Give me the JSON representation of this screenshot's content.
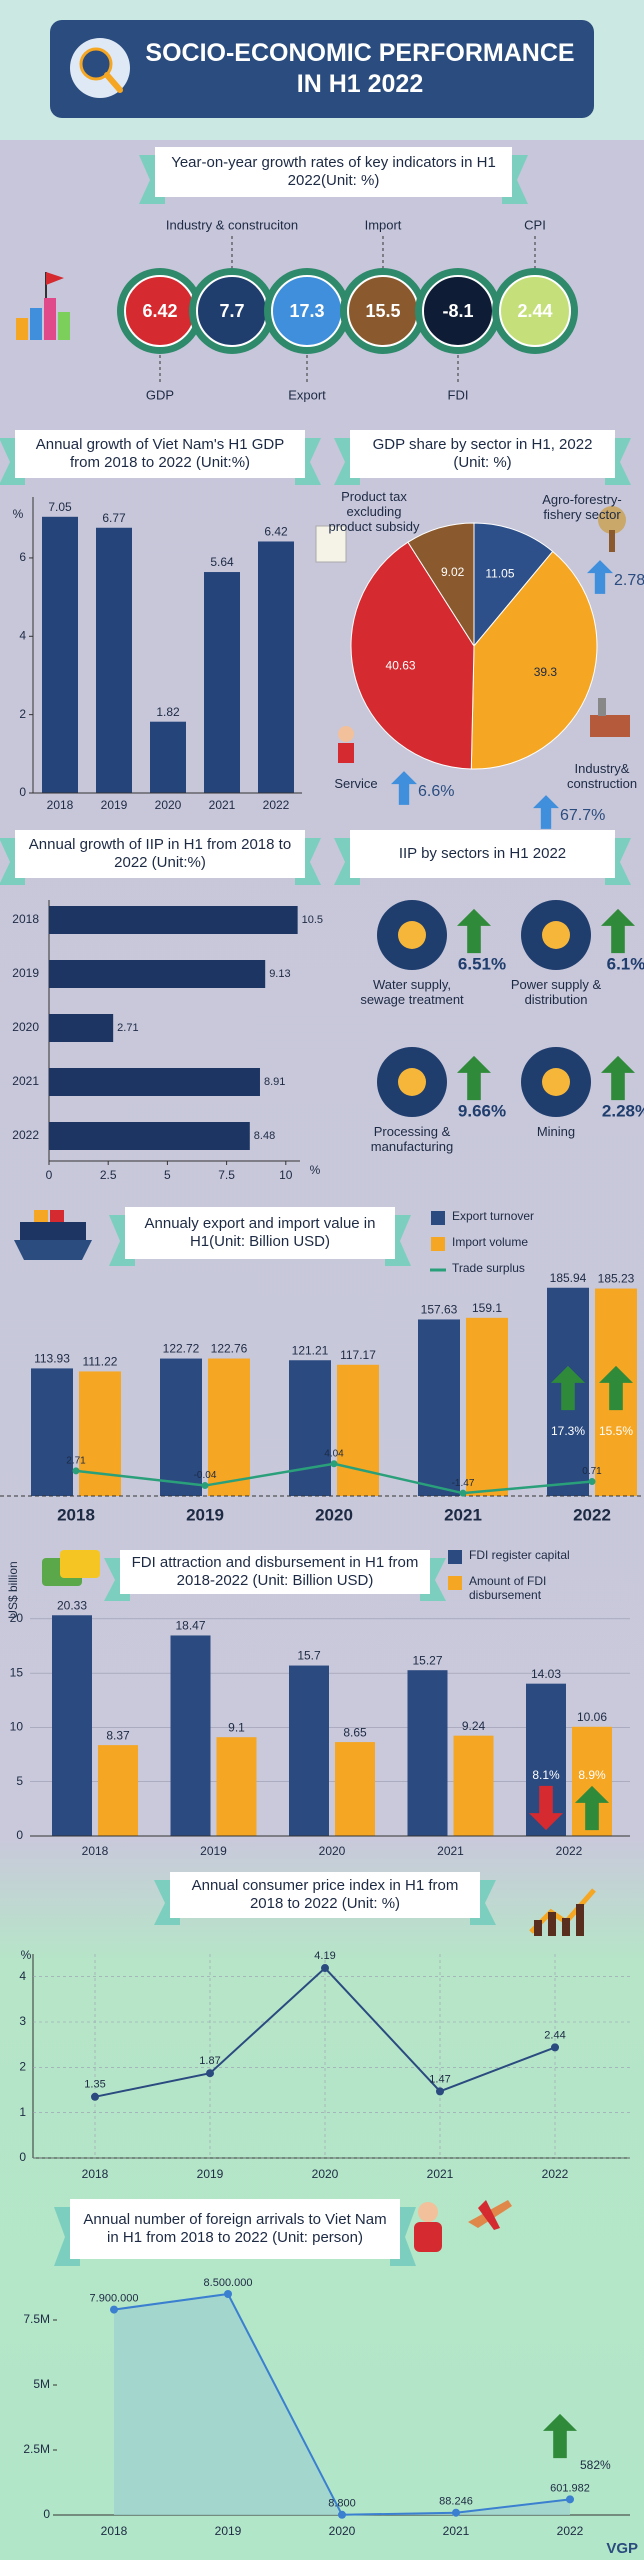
{
  "title": "SOCIO-ECONOMIC PERFORMANCE IN H1 2022",
  "indicators": {
    "title": "Year-on-year growth rates of key indicators in H1 2022(Unit: %)",
    "items": [
      {
        "label": "GDP",
        "value": 6.42,
        "color": "#d42a30"
      },
      {
        "label": "Industry & construciton",
        "value": 7.7,
        "color": "#1f3d6d"
      },
      {
        "label": "Export",
        "value": 17.3,
        "color": "#3f8fdc"
      },
      {
        "label": "Import",
        "value": 15.5,
        "color": "#8a5a2e"
      },
      {
        "label": "FDI",
        "value": -8.1,
        "color": "#0e1c35"
      },
      {
        "label": "CPI",
        "value": 2.44,
        "color": "#c5e07a"
      }
    ]
  },
  "chart_data": [
    {
      "type": "bar",
      "title": "Annual growth of Viet Nam's H1 GDP from 2018 to 2022 (Unit:%)",
      "y_label": "%",
      "categories": [
        "2018",
        "2019",
        "2020",
        "2021",
        "2022"
      ],
      "values": [
        7.05,
        6.77,
        1.82,
        5.64,
        6.42
      ],
      "color": "#25457a",
      "ylim": [
        0,
        7.3
      ],
      "yticks": [
        0,
        2,
        4,
        6
      ]
    },
    {
      "type": "pie",
      "title": "GDP share by sector in H1, 2022 (Unit: %)",
      "categories": [
        "Agro-forestry-fishery sector",
        "Industry& construction",
        "Service",
        "Product tax excluding product subsidy"
      ],
      "values": [
        11.05,
        39.3,
        40.63,
        9.02
      ],
      "colors": [
        "#2d4f8a",
        "#f5a623",
        "#d42a30",
        "#8a5a2e"
      ],
      "annotations": [
        "2.78%",
        "67.7%",
        "6.6%"
      ]
    },
    {
      "type": "bar",
      "orientation": "horizontal",
      "title": "Annual growth of IIP in H1 from 2018 to 2022 (Unit:%)",
      "x_label": "%",
      "categories": [
        "2018",
        "2019",
        "2020",
        "2021",
        "2022"
      ],
      "values": [
        10.5,
        9.13,
        2.71,
        8.91,
        8.48
      ],
      "color": "#1c3563",
      "xlim": [
        0,
        10.6
      ],
      "xticks": [
        0,
        2.5,
        5,
        7.5,
        10
      ]
    },
    {
      "type": "bar",
      "title": "Annualy export and import value in H1(Unit: Billion USD)",
      "categories": [
        "2018",
        "2019",
        "2020",
        "2021",
        "2022"
      ],
      "series": [
        {
          "name": "Export turnover",
          "color": "#2a4a80",
          "values": [
            113.93,
            122.72,
            121.21,
            157.63,
            185.94
          ]
        },
        {
          "name": "Import volume",
          "color": "#f5a623",
          "values": [
            111.22,
            122.76,
            117.17,
            159.1,
            185.23
          ]
        },
        {
          "name": "Trade surplus",
          "type": "line",
          "axis": "y2",
          "color": "#2aa07a",
          "values": [
            2.71,
            -0.04,
            4.04,
            -1.47,
            0.71
          ]
        }
      ],
      "ylim": [
        0,
        200
      ],
      "y2lim": [
        -2,
        40
      ],
      "annotations": [
        "17.3%",
        "15.5%"
      ],
      "annotation_directions": [
        "up",
        "up"
      ]
    },
    {
      "type": "bar",
      "title": "FDI attraction and disbursement in H1 from 2018-2022 (Unit: Billion USD)",
      "y_label": "US$ billion",
      "categories": [
        "2018",
        "2019",
        "2020",
        "2021",
        "2022"
      ],
      "series": [
        {
          "name": "FDI register capital",
          "color": "#2a4a80",
          "values": [
            20.33,
            18.47,
            15.7,
            15.27,
            14.03
          ]
        },
        {
          "name": "Amount of FDI disbursement",
          "color": "#f5a623",
          "values": [
            8.37,
            9.1,
            8.65,
            9.24,
            10.06
          ]
        }
      ],
      "ylim": [
        0,
        21
      ],
      "yticks": [
        0,
        5,
        10,
        15,
        20
      ],
      "grid": true,
      "annotations": [
        "8.1%",
        "8.9%"
      ],
      "annotation_directions": [
        "down",
        "up"
      ]
    },
    {
      "type": "line",
      "title": "Annual consumer price index in H1 from 2018 to 2022  (Unit: %)",
      "y_label": "%",
      "categories": [
        "2018",
        "2019",
        "2020",
        "2021",
        "2022"
      ],
      "values": [
        1.35,
        1.87,
        4.19,
        1.47,
        2.44
      ],
      "color": "#2a4a80",
      "ylim": [
        0,
        4.5
      ],
      "yticks": [
        0,
        1,
        2,
        3,
        4
      ],
      "grid": true
    },
    {
      "type": "area",
      "title": "Annual number of foreign arrivals to Viet Nam in H1 from 2018 to 2022 (Unit: person)",
      "categories": [
        "2018",
        "2019",
        "2020",
        "2021",
        "2022"
      ],
      "values": [
        7900000,
        8500000,
        8800,
        88246,
        601982
      ],
      "value_labels": [
        "7.900.000",
        "8.500.000",
        "8.800",
        "88.246",
        "601.982"
      ],
      "color": "#3a7fd0",
      "ylim": [
        0,
        9000000
      ],
      "yticks": [
        0,
        {
          "value": 2500000,
          "label": "2.5M"
        },
        {
          "value": 5000000,
          "label": "5M"
        },
        {
          "value": 7500000,
          "label": "7.5M"
        }
      ],
      "annotations": [
        "582%"
      ],
      "annotation_directions": [
        "up"
      ]
    }
  ],
  "iip_sectors": {
    "title": "IIP by sectors in H1 2022",
    "items": [
      {
        "label": "Water supply, sewage treatment",
        "value": "6.51%"
      },
      {
        "label": "Power supply & distribution",
        "value": "6.1%"
      },
      {
        "label": "Processing & manufacturing",
        "value": "9.66%"
      },
      {
        "label": "Mining",
        "value": "2.28%"
      }
    ]
  },
  "source": "VGP"
}
